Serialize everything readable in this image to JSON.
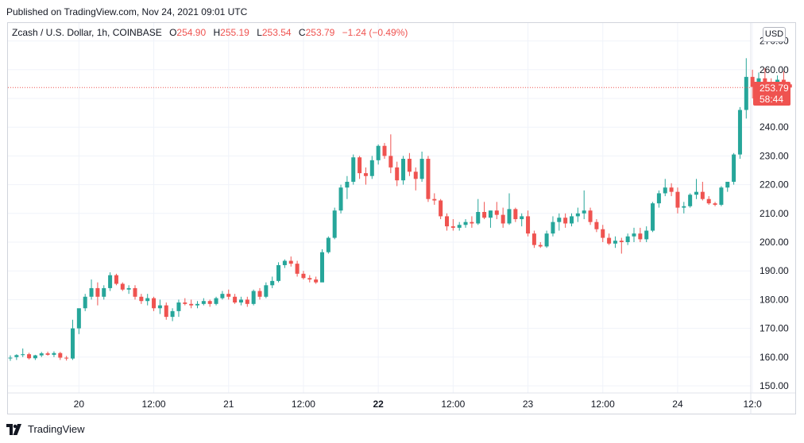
{
  "header": {
    "published": "Published on TradingView.com, Nov 24, 2021 09:01 UTC"
  },
  "legend": {
    "symbol": "Zcash / U.S. Dollar, 1h, COINBASE",
    "o_label": "O",
    "o_value": "254.90",
    "h_label": "H",
    "h_value": "255.19",
    "l_label": "L",
    "l_value": "253.54",
    "c_label": "C",
    "c_value": "253.79",
    "change": "−1.24 (−0.49%)"
  },
  "currency": "USD",
  "last_price": {
    "price": "253.79",
    "countdown": "58:44"
  },
  "footer": {
    "brand": "TradingView",
    "logo_icon": "tradingview-logo-icon"
  },
  "colors": {
    "up": "#26a69a",
    "down": "#ef5350",
    "grid": "#f0f3fa",
    "text": "#131722"
  },
  "chart_data": {
    "type": "candlestick",
    "symbol": "ZEC/USD",
    "interval": "1h",
    "y_axis": {
      "range": [
        147,
        273
      ],
      "ticks": [
        "150.00",
        "160.00",
        "170.00",
        "180.00",
        "190.00",
        "200.00",
        "210.00",
        "220.00",
        "230.00",
        "240.00",
        "250.00",
        "260.00",
        "270.00"
      ],
      "tick_values": [
        150,
        160,
        170,
        180,
        190,
        200,
        210,
        220,
        230,
        240,
        250,
        260,
        270
      ]
    },
    "x_axis": {
      "ticks": [
        {
          "label": "20",
          "bar": 11,
          "bold": false
        },
        {
          "label": "12:00",
          "bar": 23,
          "bold": false
        },
        {
          "label": "21",
          "bar": 35,
          "bold": false
        },
        {
          "label": "12:00",
          "bar": 47,
          "bold": false
        },
        {
          "label": "22",
          "bar": 59,
          "bold": true
        },
        {
          "label": "12:00",
          "bar": 71,
          "bold": false
        },
        {
          "label": "23",
          "bar": 83,
          "bold": false
        },
        {
          "label": "12:00",
          "bar": 95,
          "bold": false
        },
        {
          "label": "24",
          "bar": 107,
          "bold": false
        },
        {
          "label": "12:0",
          "bar": 119,
          "bold": false
        }
      ]
    },
    "grid": true,
    "last_price_line": 253.79,
    "candles": [
      [
        159.8,
        160.6,
        158.7,
        159.8
      ],
      [
        160.0,
        161.0,
        159.0,
        160.7
      ],
      [
        160.7,
        163.0,
        160.0,
        161.0
      ],
      [
        161.0,
        161.5,
        159.2,
        159.6
      ],
      [
        159.6,
        160.8,
        159.0,
        160.6
      ],
      [
        160.6,
        161.8,
        160.0,
        161.3
      ],
      [
        161.3,
        161.9,
        160.5,
        160.8
      ],
      [
        160.8,
        162.0,
        160.0,
        161.4
      ],
      [
        161.4,
        161.8,
        159.0,
        159.8
      ],
      [
        159.8,
        160.4,
        158.8,
        159.5
      ],
      [
        159.5,
        173.0,
        159.0,
        170.0
      ],
      [
        170.0,
        176.0,
        168.0,
        177.0
      ],
      [
        177.0,
        182.0,
        176.0,
        181.0
      ],
      [
        181.0,
        187.0,
        180.0,
        184.0
      ],
      [
        184.0,
        186.0,
        178.0,
        181.0
      ],
      [
        181.0,
        185.0,
        180.0,
        184.0
      ],
      [
        184.0,
        189.5,
        183.0,
        188.5
      ],
      [
        188.5,
        189.0,
        185.0,
        185.5
      ],
      [
        185.5,
        186.0,
        183.0,
        183.5
      ],
      [
        183.5,
        185.0,
        182.0,
        184.0
      ],
      [
        184.0,
        185.0,
        180.0,
        181.0
      ],
      [
        181.0,
        182.0,
        178.5,
        179.5
      ],
      [
        179.5,
        182.0,
        178.0,
        180.5
      ],
      [
        180.5,
        181.0,
        176.0,
        177.0
      ],
      [
        177.0,
        180.0,
        175.0,
        178.0
      ],
      [
        178.0,
        179.0,
        173.0,
        174.0
      ],
      [
        174.0,
        177.0,
        172.5,
        176.0
      ],
      [
        176.0,
        180.0,
        174.0,
        179.0
      ],
      [
        179.0,
        180.5,
        178.0,
        178.5
      ],
      [
        178.5,
        180.0,
        177.0,
        178.0
      ],
      [
        178.0,
        179.5,
        177.0,
        178.5
      ],
      [
        178.5,
        180.5,
        178.0,
        179.5
      ],
      [
        179.5,
        180.0,
        177.5,
        178.5
      ],
      [
        178.5,
        181.0,
        178.0,
        180.5
      ],
      [
        180.5,
        183.0,
        180.0,
        182.0
      ],
      [
        182.0,
        183.5,
        180.0,
        181.0
      ],
      [
        181.0,
        182.0,
        178.5,
        179.0
      ],
      [
        179.0,
        181.0,
        178.0,
        180.0
      ],
      [
        180.0,
        181.0,
        177.5,
        178.5
      ],
      [
        178.5,
        183.5,
        178.0,
        183.0
      ],
      [
        183.0,
        184.0,
        180.0,
        181.0
      ],
      [
        181.0,
        186.0,
        180.5,
        185.0
      ],
      [
        185.0,
        188.0,
        184.0,
        186.5
      ],
      [
        186.5,
        193.0,
        186.0,
        192.0
      ],
      [
        192.0,
        194.0,
        191.0,
        193.5
      ],
      [
        193.5,
        195.0,
        191.5,
        192.5
      ],
      [
        192.5,
        193.5,
        188.0,
        189.0
      ],
      [
        189.0,
        190.0,
        187.0,
        187.5
      ],
      [
        187.5,
        188.5,
        186.0,
        187.0
      ],
      [
        187.0,
        188.0,
        185.5,
        186.0
      ],
      [
        186.0,
        197.5,
        186.5,
        196.5
      ],
      [
        196.5,
        202.0,
        196.0,
        201.5
      ],
      [
        201.5,
        212.0,
        201.0,
        211.0
      ],
      [
        211.0,
        220.0,
        210.0,
        219.0
      ],
      [
        219.0,
        223.0,
        215.0,
        221.0
      ],
      [
        221.0,
        230.5,
        220.0,
        229.5
      ],
      [
        229.5,
        230.0,
        222.0,
        224.0
      ],
      [
        224.0,
        226.0,
        220.0,
        223.0
      ],
      [
        223.0,
        230.0,
        222.0,
        228.5
      ],
      [
        228.5,
        234.0,
        227.0,
        233.5
      ],
      [
        233.5,
        234.5,
        229.0,
        230.0
      ],
      [
        230.0,
        237.5,
        224.0,
        226.0
      ],
      [
        226.0,
        228.0,
        219.5,
        221.5
      ],
      [
        221.5,
        230.0,
        220.0,
        229.0
      ],
      [
        229.0,
        231.0,
        223.0,
        224.5
      ],
      [
        224.5,
        226.0,
        218.0,
        222.0
      ],
      [
        222.0,
        231.5,
        221.0,
        229.0
      ],
      [
        229.0,
        230.0,
        214.0,
        215.0
      ],
      [
        215.0,
        217.0,
        213.0,
        214.5
      ],
      [
        214.5,
        215.0,
        208.0,
        209.0
      ],
      [
        209.0,
        210.0,
        204.0,
        205.5
      ],
      [
        205.5,
        208.0,
        204.0,
        205.0
      ],
      [
        205.0,
        207.0,
        204.0,
        206.0
      ],
      [
        206.0,
        208.0,
        205.0,
        207.0
      ],
      [
        207.0,
        209.0,
        205.0,
        206.5
      ],
      [
        206.5,
        215.0,
        206.0,
        210.5
      ],
      [
        210.5,
        214.0,
        208.0,
        208.5
      ],
      [
        208.5,
        211.0,
        205.0,
        211.0
      ],
      [
        211.0,
        214.0,
        208.0,
        209.5
      ],
      [
        209.5,
        212.0,
        205.0,
        206.5
      ],
      [
        206.5,
        217.0,
        206.0,
        211.5
      ],
      [
        211.5,
        212.0,
        207.0,
        208.0
      ],
      [
        208.0,
        210.0,
        205.5,
        209.0
      ],
      [
        209.0,
        211.0,
        202.0,
        203.0
      ],
      [
        203.0,
        204.0,
        198.0,
        199.0
      ],
      [
        199.0,
        200.0,
        198.0,
        198.5
      ],
      [
        198.5,
        204.0,
        198.0,
        203.0
      ],
      [
        203.0,
        209.0,
        202.0,
        207.0
      ],
      [
        207.0,
        210.0,
        204.0,
        208.5
      ],
      [
        208.5,
        210.0,
        205.0,
        206.5
      ],
      [
        206.5,
        210.0,
        205.5,
        209.0
      ],
      [
        209.0,
        212.0,
        207.0,
        210.0
      ],
      [
        210.0,
        218.0,
        208.0,
        211.0
      ],
      [
        211.0,
        212.0,
        206.0,
        207.0
      ],
      [
        207.0,
        208.0,
        203.5,
        204.5
      ],
      [
        204.5,
        206.0,
        200.0,
        201.5
      ],
      [
        201.5,
        203.0,
        199.0,
        199.5
      ],
      [
        199.5,
        202.0,
        198.0,
        200.5
      ],
      [
        200.5,
        201.5,
        196.0,
        200.0
      ],
      [
        200.0,
        203.0,
        199.0,
        202.0
      ],
      [
        202.0,
        205.0,
        200.0,
        203.0
      ],
      [
        203.0,
        205.0,
        200.0,
        201.0
      ],
      [
        201.0,
        205.5,
        200.0,
        204.0
      ],
      [
        204.0,
        214.0,
        203.5,
        213.5
      ],
      [
        213.5,
        218.0,
        212.0,
        217.0
      ],
      [
        217.0,
        222.0,
        216.0,
        219.0
      ],
      [
        219.0,
        220.5,
        216.0,
        217.5
      ],
      [
        217.5,
        219.0,
        210.0,
        212.0
      ],
      [
        212.0,
        214.0,
        210.0,
        212.5
      ],
      [
        212.5,
        217.0,
        212.0,
        216.5
      ],
      [
        216.5,
        222.0,
        215.0,
        217.5
      ],
      [
        217.5,
        221.0,
        214.5,
        215.0
      ],
      [
        215.0,
        216.0,
        213.0,
        213.5
      ],
      [
        213.5,
        214.0,
        212.5,
        213.0
      ],
      [
        213.0,
        219.5,
        212.5,
        219.0
      ],
      [
        219.0,
        221.0,
        217.5,
        221.0
      ],
      [
        221.0,
        231.0,
        220.0,
        230.5
      ],
      [
        230.5,
        247.0,
        229.0,
        246.0
      ],
      [
        246.0,
        264.0,
        243.0,
        257.5
      ],
      [
        257.5,
        260.0,
        250.0,
        254.0
      ],
      [
        254.0,
        259.0,
        251.5,
        257.0
      ],
      [
        257.0,
        260.5,
        251.0,
        255.0
      ],
      [
        255.0,
        257.0,
        249.0,
        252.0
      ],
      [
        252.0,
        258.0,
        249.0,
        256.5
      ],
      [
        256.5,
        259.5,
        252.0,
        255.0
      ],
      [
        254.9,
        255.19,
        253.54,
        253.79
      ]
    ]
  }
}
